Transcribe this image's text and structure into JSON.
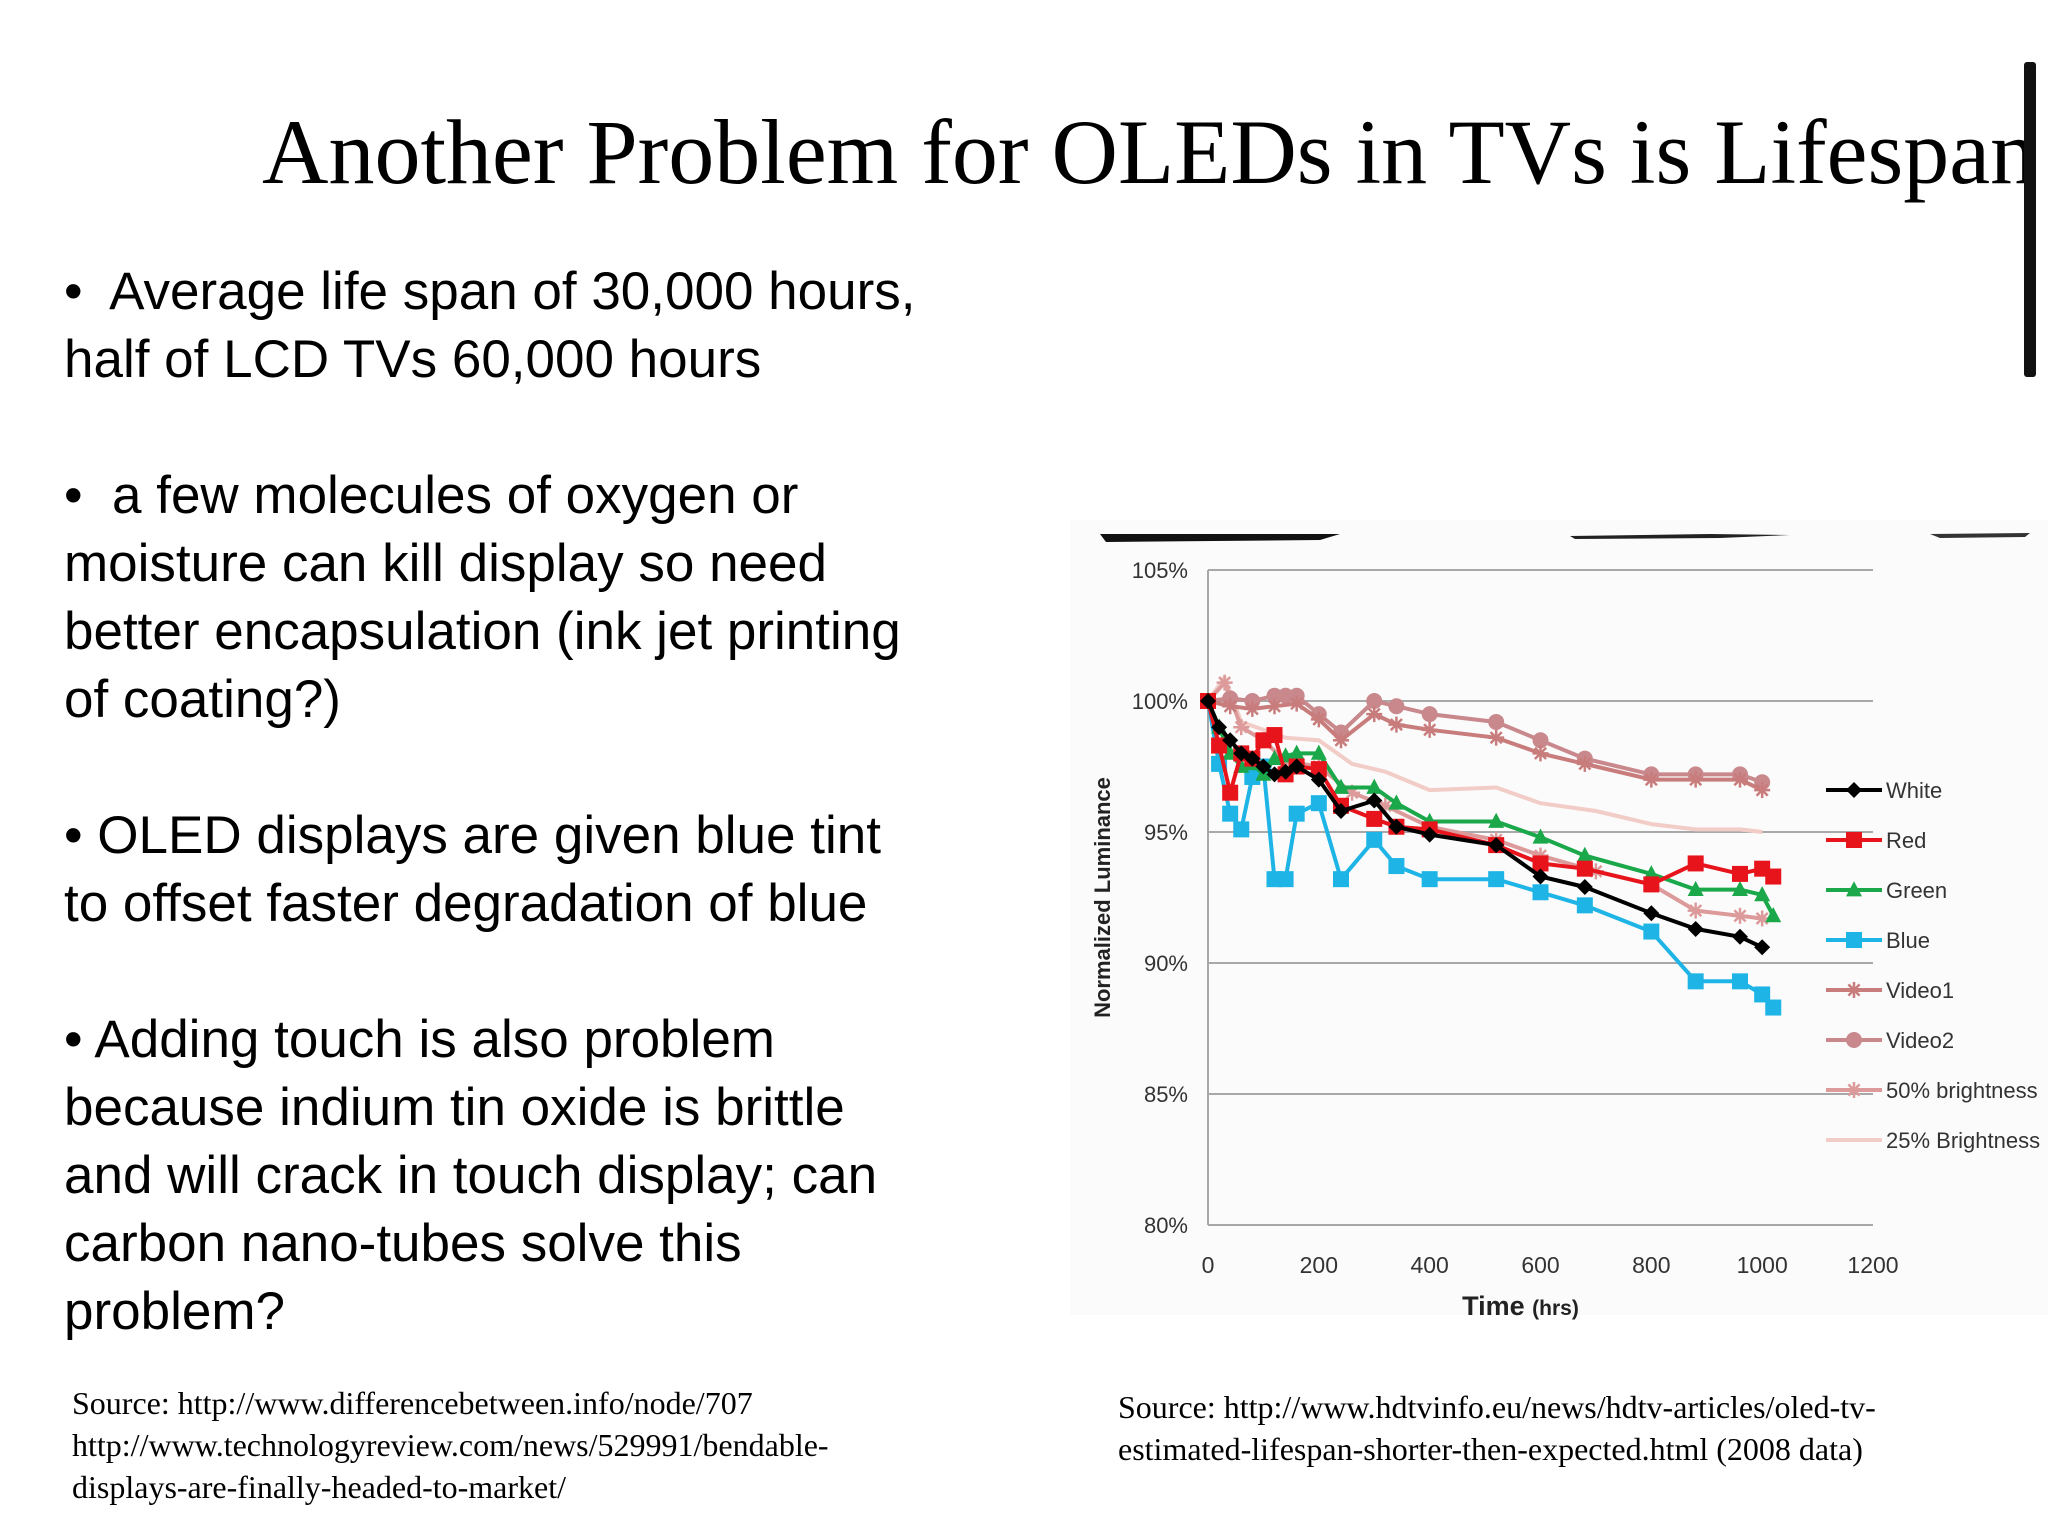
{
  "slide": {
    "title": "Another Problem for OLEDs in TVs is Lifespan",
    "bullets": [
      {
        "marker": "•",
        "lines": [
          "Average life span of 30,000 hours,",
          "half of LCD TVs 60,000 hours"
        ]
      },
      {
        "marker": "•",
        "lines": [
          "a few molecules of oxygen or",
          "moisture can kill display so need",
          "better encapsulation (ink jet printing",
          "of coating?)"
        ]
      },
      {
        "marker": "•",
        "lines": [
          "OLED displays are given blue tint",
          "to offset faster degradation of blue"
        ]
      },
      {
        "marker": "•",
        "lines": [
          "Adding touch is also problem",
          "because indium tin oxide is brittle",
          "and will crack in touch display; can",
          "carbon nano-tubes solve this",
          "problem?"
        ]
      }
    ],
    "source_left": [
      "Source: http://www.differencebetween.info/node/707",
      "http://www.technologyreview.com/news/529991/bendable-",
      "displays-are-finally-headed-to-market/"
    ],
    "source_right": [
      "Source: http://www.hdtvinfo.eu/news/hdtv-articles/oled-tv-",
      "estimated-lifespan-shorter-then-expected.html  (2008 data)"
    ]
  },
  "chart_data": {
    "type": "line",
    "title": "",
    "xlabel": "Time",
    "xlabel_unit": "(hrs)",
    "ylabel": "Normalized Luminance",
    "xlim": [
      0,
      1200
    ],
    "ylim": [
      80,
      105
    ],
    "x_ticks": [
      0,
      200,
      400,
      600,
      800,
      1000,
      1200
    ],
    "x_tick_labels": [
      "0",
      "200",
      "400",
      "600",
      "800",
      "1000",
      "1200"
    ],
    "y_ticks": [
      80,
      85,
      90,
      95,
      100,
      105
    ],
    "y_tick_labels": [
      "80%",
      "85%",
      "90%",
      "95%",
      "100%",
      "105%"
    ],
    "grid": "horizontal",
    "legend_position": "right",
    "series": [
      {
        "name": "White",
        "color": "#000000",
        "marker": "diamond",
        "x": [
          0,
          20,
          40,
          60,
          80,
          100,
          120,
          140,
          160,
          200,
          240,
          300,
          340,
          400,
          520,
          600,
          680,
          800,
          880,
          960,
          1000
        ],
        "y": [
          100,
          99.0,
          98.5,
          98.0,
          97.8,
          97.5,
          97.2,
          97.3,
          97.5,
          97.0,
          95.8,
          96.2,
          95.2,
          94.9,
          94.5,
          93.3,
          92.9,
          91.9,
          91.3,
          91.0,
          90.6
        ]
      },
      {
        "name": "Red",
        "color": "#e8141c",
        "marker": "square",
        "x": [
          0,
          20,
          40,
          60,
          80,
          100,
          120,
          140,
          160,
          200,
          240,
          300,
          340,
          400,
          520,
          600,
          680,
          800,
          880,
          960,
          1000,
          1020
        ],
        "y": [
          100,
          98.3,
          96.5,
          98.0,
          97.8,
          98.5,
          98.7,
          97.2,
          97.5,
          97.4,
          96.0,
          95.5,
          95.2,
          95.1,
          94.5,
          93.8,
          93.6,
          93.0,
          93.8,
          93.4,
          93.6,
          93.3
        ]
      },
      {
        "name": "Green",
        "color": "#1aa84a",
        "marker": "triangle",
        "x": [
          0,
          20,
          40,
          60,
          80,
          100,
          120,
          140,
          160,
          200,
          240,
          300,
          340,
          400,
          520,
          600,
          680,
          800,
          880,
          960,
          1000,
          1020
        ],
        "y": [
          100,
          99.0,
          98.0,
          97.5,
          97.6,
          97.2,
          97.8,
          97.9,
          98.0,
          98.0,
          96.7,
          96.7,
          96.1,
          95.4,
          95.4,
          94.8,
          94.1,
          93.4,
          92.8,
          92.8,
          92.6,
          91.8
        ]
      },
      {
        "name": "Blue",
        "color": "#1eb4e6",
        "marker": "square",
        "x": [
          0,
          20,
          40,
          60,
          80,
          100,
          120,
          140,
          160,
          200,
          240,
          300,
          340,
          400,
          520,
          600,
          680,
          800,
          880,
          960,
          1000,
          1020
        ],
        "y": [
          100,
          97.6,
          95.7,
          95.1,
          97.1,
          97.5,
          93.2,
          93.2,
          95.7,
          96.1,
          93.2,
          94.7,
          93.7,
          93.2,
          93.2,
          92.7,
          92.2,
          91.2,
          89.3,
          89.3,
          88.8,
          88.3
        ]
      },
      {
        "name": "Video1",
        "color": "#c87c7c",
        "marker": "star",
        "x": [
          0,
          40,
          80,
          120,
          160,
          200,
          240,
          300,
          340,
          400,
          520,
          600,
          680,
          800,
          880,
          960,
          1000
        ],
        "y": [
          100,
          99.8,
          99.7,
          99.8,
          99.9,
          99.3,
          98.5,
          99.5,
          99.1,
          98.9,
          98.6,
          98.0,
          97.6,
          97.0,
          97.0,
          97.0,
          96.6
        ]
      },
      {
        "name": "Video2",
        "color": "#c8888c",
        "marker": "circle",
        "x": [
          0,
          40,
          80,
          120,
          140,
          160,
          200,
          240,
          300,
          340,
          400,
          520,
          600,
          680,
          800,
          880,
          960,
          1000
        ],
        "y": [
          100,
          100.1,
          100.0,
          100.2,
          100.2,
          100.2,
          99.5,
          98.8,
          100.0,
          99.8,
          99.5,
          99.2,
          98.5,
          97.8,
          97.2,
          97.2,
          97.2,
          96.9
        ]
      },
      {
        "name": "50% brightness",
        "color": "#dc9a9a",
        "marker": "star",
        "x": [
          0,
          30,
          60,
          100,
          140,
          200,
          260,
          320,
          400,
          520,
          600,
          700,
          800,
          880,
          960,
          1000
        ],
        "y": [
          100,
          100.7,
          99.0,
          98.5,
          97.7,
          97.5,
          96.5,
          96.0,
          95.2,
          94.7,
          94.1,
          93.5,
          93.0,
          92.0,
          91.8,
          91.7
        ]
      },
      {
        "name": "25% Brightness",
        "color": "#f2ccc6",
        "marker": "none",
        "x": [
          0,
          30,
          60,
          100,
          140,
          200,
          260,
          320,
          400,
          520,
          600,
          700,
          800,
          880,
          960,
          1000
        ],
        "y": [
          100,
          100.9,
          99.2,
          98.9,
          98.6,
          98.5,
          97.6,
          97.3,
          96.6,
          96.7,
          96.1,
          95.8,
          95.3,
          95.1,
          95.1,
          95.0
        ]
      }
    ]
  }
}
